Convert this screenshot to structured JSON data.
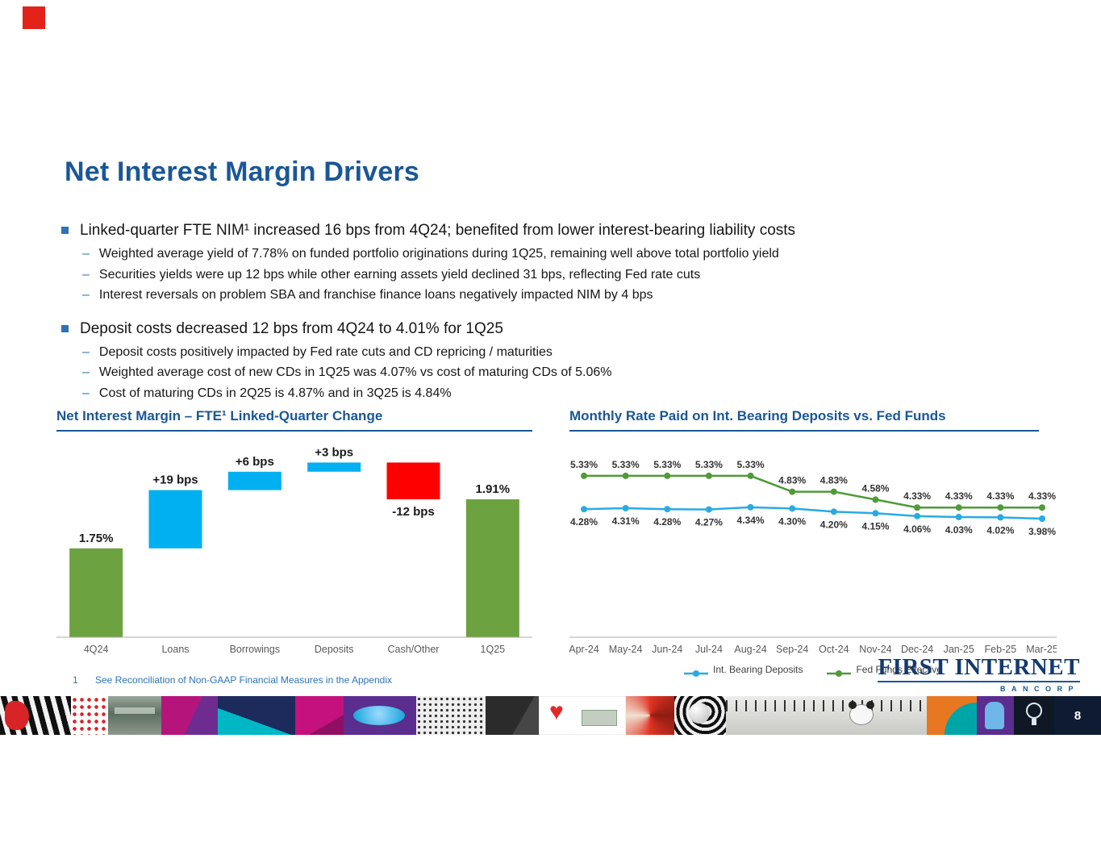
{
  "colors": {
    "accent_blue": "#1A5796",
    "bullet_blue": "#2E74B5",
    "waterfall_green": "#6CA23F",
    "waterfall_blue": "#00B0F0",
    "waterfall_red": "#FF0000",
    "line_blue": "#29ABE2",
    "line_green": "#4E9B38"
  },
  "icons": {
    "heart": "♥"
  },
  "slide": {
    "title": "Net Interest Margin Drivers",
    "page_number": "8",
    "sub_bullet_glyph": "–",
    "footnote_marker": "1",
    "footnote_text": "See Reconciliation of Non-GAAP Financial Measures in the Appendix",
    "logo_line1": "FIRST INTERNET",
    "logo_line2": "BANCORP"
  },
  "bullets": [
    {
      "text": "Linked-quarter FTE NIM¹ increased 16 bps from 4Q24; benefited from lower interest-bearing liability costs",
      "subs": [
        "Weighted average yield of 7.78% on funded portfolio originations during 1Q25, remaining well above total portfolio yield",
        "Securities yields were up 12 bps while other earning assets yield declined 31 bps, reflecting Fed rate cuts",
        "Interest reversals on problem SBA and franchise finance loans negatively impacted NIM by 4 bps"
      ]
    },
    {
      "text": "Deposit costs decreased 12 bps from 4Q24 to 4.01% for 1Q25",
      "subs": [
        "Deposit costs positively impacted by Fed rate cuts and CD repricing / maturities",
        "Weighted average cost of new CDs in 1Q25 was 4.07% vs cost of maturing CDs of 5.06%",
        "Cost of maturing CDs in 2Q25 is 4.87% and in 3Q25 is 4.84%"
      ]
    }
  ],
  "chart_data": [
    {
      "type": "bar",
      "subtype": "waterfall",
      "title": "Net Interest Margin – FTE¹ Linked-Quarter Change",
      "unit": "%",
      "grid": false,
      "ylim": [
        1.46,
        2.1
      ],
      "categories": [
        "4Q24",
        "Loans",
        "Borrowings",
        "Deposits",
        "Cash/Other",
        "1Q25"
      ],
      "bars": [
        {
          "category": "4Q24",
          "kind": "total",
          "value": 1.75,
          "label": "1.75%",
          "color": "#6CA23F"
        },
        {
          "category": "Loans",
          "kind": "delta",
          "value": 0.19,
          "label": "+19 bps",
          "color": "#00B0F0"
        },
        {
          "category": "Borrowings",
          "kind": "delta",
          "value": 0.06,
          "label": "+6 bps",
          "color": "#00B0F0"
        },
        {
          "category": "Deposits",
          "kind": "delta",
          "value": 0.03,
          "label": "+3 bps",
          "color": "#00B0F0"
        },
        {
          "category": "Cash/Other",
          "kind": "delta",
          "value": -0.12,
          "label": "-12 bps",
          "color": "#FF0000"
        },
        {
          "category": "1Q25",
          "kind": "total",
          "value": 1.91,
          "label": "1.91%",
          "color": "#6CA23F"
        }
      ]
    },
    {
      "type": "line",
      "title": "Monthly Rate Paid on Int. Bearing Deposits vs. Fed Funds",
      "unit": "%",
      "grid": false,
      "legend_position": "bottom",
      "x": [
        "Apr-24",
        "May-24",
        "Jun-24",
        "Jul-24",
        "Aug-24",
        "Sep-24",
        "Oct-24",
        "Nov-24",
        "Dec-24",
        "Jan-25",
        "Feb-25",
        "Mar-25"
      ],
      "series": [
        {
          "name": "Int. Bearing Deposits",
          "color": "#29ABE2",
          "label_position": "below",
          "values": [
            4.28,
            4.31,
            4.28,
            4.27,
            4.34,
            4.3,
            4.2,
            4.15,
            4.06,
            4.03,
            4.02,
            3.98
          ]
        },
        {
          "name": "Fed Funds Effective",
          "color": "#4E9B38",
          "label_position": "above",
          "values": [
            5.33,
            5.33,
            5.33,
            5.33,
            5.33,
            4.83,
            4.83,
            4.58,
            4.33,
            4.33,
            4.33,
            4.33
          ]
        }
      ]
    }
  ]
}
